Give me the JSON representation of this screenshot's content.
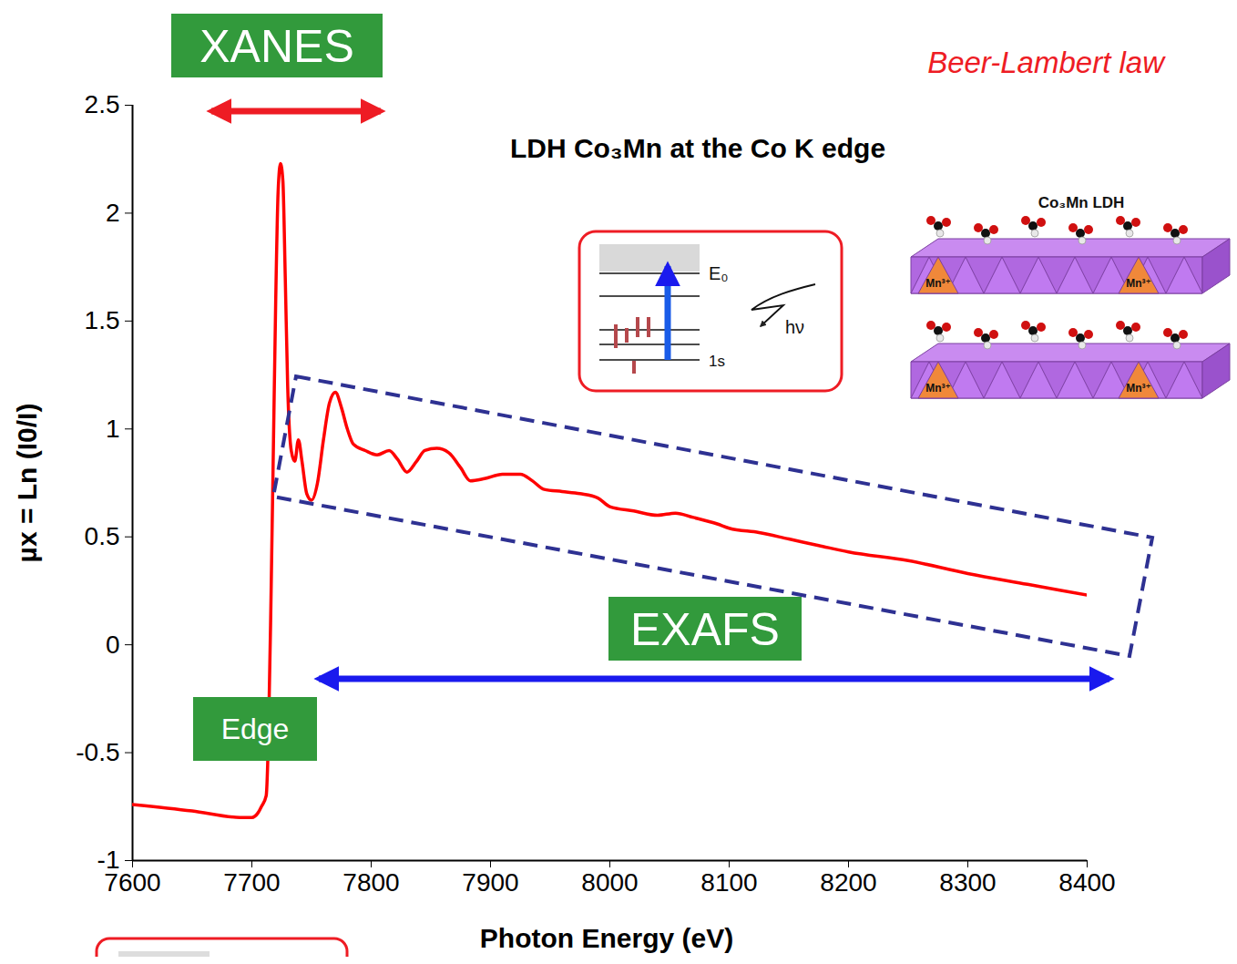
{
  "chart_data": {
    "type": "line",
    "title": "LDH Co₃Mn at the Co K edge",
    "x_label": "Photon Energy (eV)",
    "y_label": "µx = Ln (I0/I)",
    "x": [
      7600,
      7650,
      7690,
      7700,
      7705,
      7708,
      7712,
      7714,
      7716,
      7718,
      7720,
      7722,
      7724,
      7726,
      7728,
      7730,
      7733,
      7736,
      7739,
      7742,
      7746,
      7750,
      7755,
      7760,
      7765,
      7770,
      7775,
      7780,
      7785,
      7795,
      7805,
      7815,
      7822,
      7830,
      7838,
      7845,
      7855,
      7865,
      7875,
      7883,
      7895,
      7910,
      7925,
      7935,
      7945,
      7960,
      7975,
      7990,
      8000,
      8020,
      8040,
      8055,
      8070,
      8090,
      8100,
      8125,
      8150,
      8175,
      8200,
      8250,
      8300,
      8350,
      8400
    ],
    "values": [
      -0.74,
      -0.77,
      -0.8,
      -0.8,
      -0.78,
      -0.75,
      -0.7,
      -0.4,
      0.2,
      0.9,
      1.6,
      2.1,
      2.23,
      2.15,
      1.7,
      1.2,
      0.9,
      0.85,
      0.95,
      0.85,
      0.7,
      0.67,
      0.75,
      0.95,
      1.12,
      1.17,
      1.1,
      1.0,
      0.93,
      0.9,
      0.88,
      0.9,
      0.86,
      0.8,
      0.85,
      0.9,
      0.91,
      0.89,
      0.82,
      0.76,
      0.77,
      0.79,
      0.79,
      0.76,
      0.72,
      0.71,
      0.7,
      0.68,
      0.64,
      0.62,
      0.6,
      0.61,
      0.59,
      0.56,
      0.54,
      0.52,
      0.49,
      0.46,
      0.43,
      0.39,
      0.33,
      0.28,
      0.23
    ],
    "color": "#ff0000",
    "marker": "none",
    "line_style": "solid",
    "xlim": [
      7600,
      8400
    ],
    "ylim": [
      -1,
      2.5
    ],
    "xticks": [
      7600,
      7700,
      7800,
      7900,
      8000,
      8100,
      8200,
      8300,
      8400
    ],
    "yticks": [
      -1,
      -0.5,
      0,
      0.5,
      1,
      1.5,
      2,
      2.5
    ],
    "grid": false,
    "annotations": [
      "Beer-Lambert law",
      "XANES",
      "Edge",
      "EXAFS",
      "E₀",
      "hν",
      "1s",
      "Co₃Mn LDH",
      "Mn³⁺",
      "Mn³⁺",
      "Mn³⁺",
      "Mn³⁺"
    ]
  }
}
